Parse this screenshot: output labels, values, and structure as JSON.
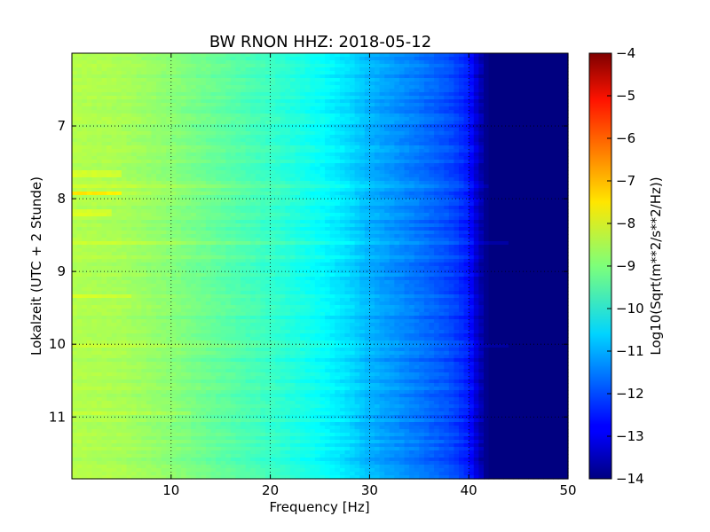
{
  "chart_data": {
    "type": "heatmap",
    "title": "BW RNON HHZ: 2018-05-12",
    "xlabel": "Frequency [Hz]",
    "ylabel": "Lokalzeit (UTC + 2 Stunde)",
    "xlim": [
      0,
      50
    ],
    "ylim": [
      6,
      11.85
    ],
    "y_inverted": true,
    "x_ticks": [
      10,
      20,
      30,
      40,
      50
    ],
    "x_tick_labels": [
      "10",
      "20",
      "30",
      "40",
      "50"
    ],
    "y_ticks": [
      7,
      8,
      9,
      10,
      11
    ],
    "y_tick_labels": [
      "7",
      "8",
      "9",
      "10",
      "11"
    ],
    "grid": true,
    "colorbar": {
      "label": "Log10(Sqrt(m**2/s**2/Hz))",
      "min": -14,
      "max": -4,
      "colormap": "jet",
      "ticks": [
        -4,
        -5,
        -6,
        -7,
        -8,
        -9,
        -10,
        -11,
        -12,
        -13,
        -14
      ],
      "tick_labels": [
        "−4",
        "−5",
        "−6",
        "−7",
        "−8",
        "−9",
        "−10",
        "−11",
        "−12",
        "−13",
        "−14"
      ]
    },
    "frequency_profile": {
      "frequency_hz": [
        0,
        5,
        10,
        15,
        20,
        25,
        28,
        30,
        35,
        38,
        40,
        41,
        42,
        50
      ],
      "log10_psd": [
        -8.5,
        -8.6,
        -8.9,
        -9.3,
        -9.7,
        -10.2,
        -10.6,
        -11.0,
        -11.6,
        -12.0,
        -12.5,
        -13.4,
        -14,
        -14
      ]
    },
    "strong_bands": [
      {
        "time": 7.92,
        "max_freq_hz": 5,
        "delta": 0.8
      },
      {
        "time": 7.92,
        "max_freq_hz": 23,
        "delta": 0.25
      },
      {
        "time": 7.65,
        "max_freq_hz": 5,
        "delta": 0.4
      },
      {
        "time": 8.2,
        "max_freq_hz": 4,
        "delta": 0.35
      },
      {
        "time": 8.6,
        "max_freq_hz": 44,
        "delta": 0.35
      },
      {
        "time": 10.03,
        "max_freq_hz": 44,
        "delta": 0.3
      },
      {
        "time": 9.35,
        "max_freq_hz": 6,
        "delta": 0.3
      },
      {
        "time": 10.95,
        "max_freq_hz": 12,
        "delta": 0.2
      },
      {
        "time": 7.83,
        "max_freq_hz": 42,
        "delta": 0.3
      }
    ]
  }
}
